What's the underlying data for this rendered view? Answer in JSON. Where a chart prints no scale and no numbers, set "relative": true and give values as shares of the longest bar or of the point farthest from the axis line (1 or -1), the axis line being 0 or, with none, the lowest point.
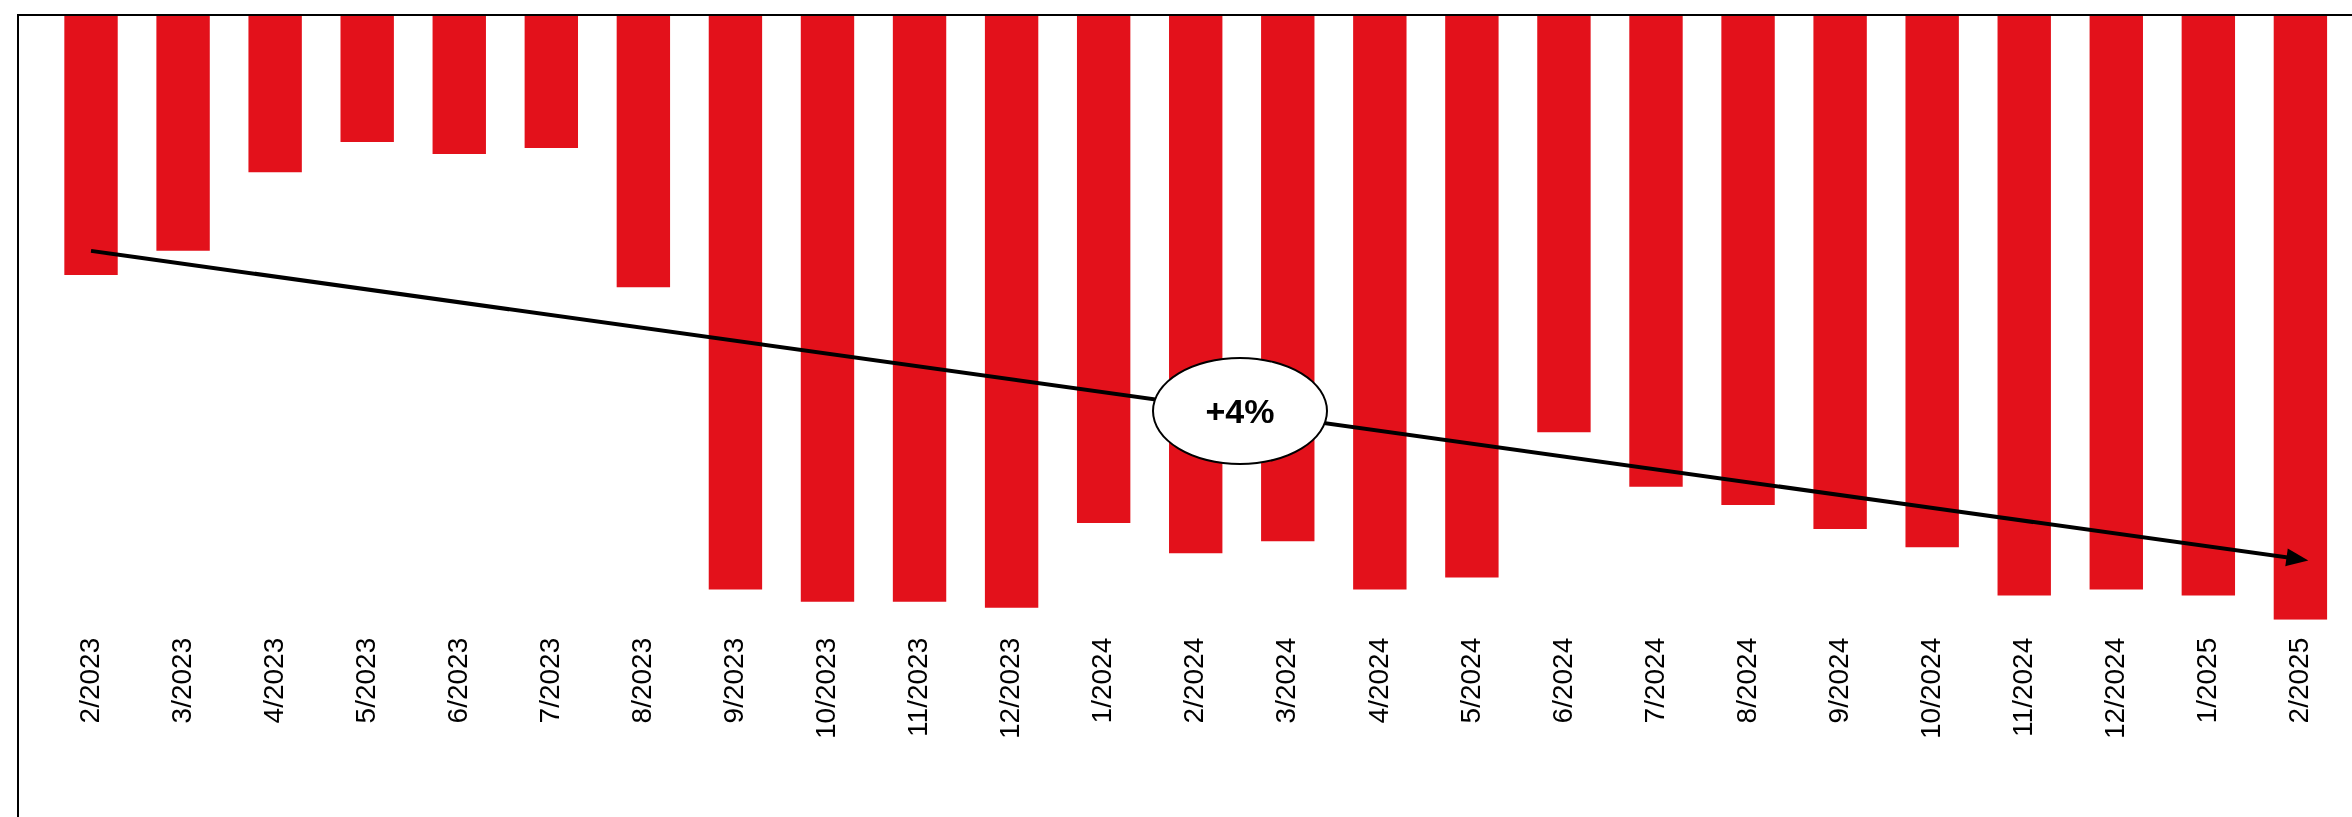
{
  "chart_data": {
    "type": "bar",
    "relative": true,
    "legend": false,
    "grid": false,
    "categories": [
      "2/2023",
      "3/2023",
      "4/2023",
      "5/2023",
      "6/2023",
      "7/2023",
      "8/2023",
      "9/2023",
      "10/2023",
      "11/2023",
      "12/2023",
      "1/2024",
      "2/2024",
      "3/2024",
      "4/2024",
      "5/2024",
      "6/2024",
      "7/2024",
      "8/2024",
      "9/2024",
      "10/2024",
      "11/2024",
      "12/2024",
      "1/2025",
      "2/2025"
    ],
    "series": [
      {
        "color": "#e3111b",
        "values": [
          -0.43,
          -0.39,
          -0.26,
          -0.21,
          -0.23,
          -0.22,
          -0.45,
          -0.95,
          -0.97,
          -0.97,
          -0.98,
          -0.84,
          -0.89,
          -0.87,
          -0.95,
          -0.93,
          -0.69,
          -0.78,
          -0.81,
          -0.85,
          -0.88,
          -0.96,
          -0.95,
          -0.96,
          -1
        ]
      },
      {
        "type": "line",
        "color": "#000000",
        "values": [
          -0.39,
          null,
          null,
          null,
          null,
          null,
          null,
          null,
          null,
          null,
          null,
          null,
          null,
          null,
          null,
          null,
          null,
          null,
          null,
          null,
          null,
          null,
          null,
          null,
          -0.9
        ]
      }
    ],
    "annotations": [
      "+4%"
    ]
  }
}
